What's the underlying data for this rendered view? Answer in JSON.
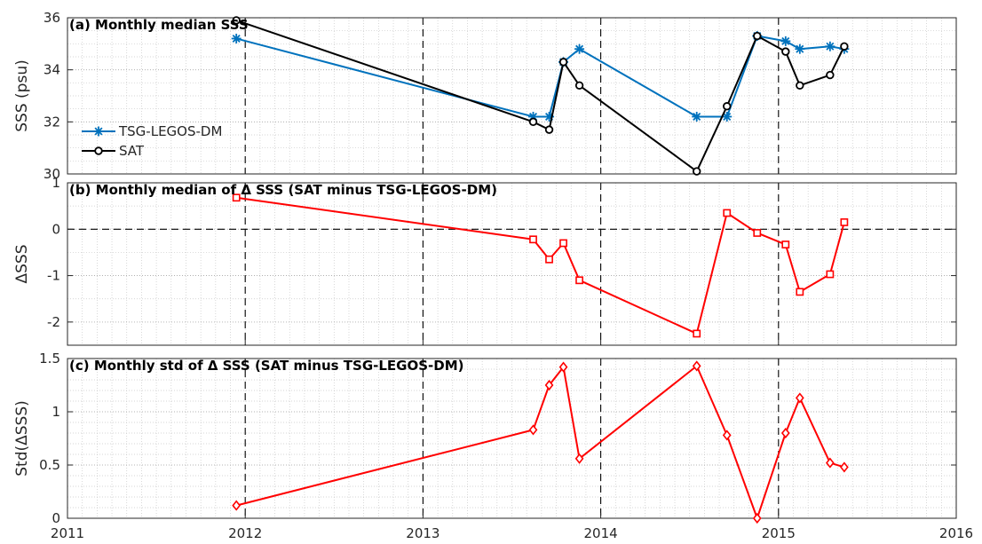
{
  "chart_data": [
    {
      "type": "line",
      "title": "(a) Monthly median SSS",
      "xlabel": "",
      "ylabel": "SSS (psu)",
      "xlim": [
        2011,
        2016
      ],
      "ylim": [
        30,
        36
      ],
      "x_ticks": [
        "2011",
        "2012",
        "2013",
        "2014",
        "2015",
        "2016"
      ],
      "y_ticks": [
        "30",
        "32",
        "34",
        "36"
      ],
      "grid": "minor dotted, major dashed vertical at years",
      "legend_position": "left",
      "series": [
        {
          "name": "TSG-LEGOS-DM",
          "color": "#0072BD",
          "marker": "asterisk",
          "x": [
            2011.95,
            2013.62,
            2013.71,
            2013.79,
            2013.88,
            2014.54,
            2014.71,
            2014.88,
            2015.04,
            2015.12,
            2015.29,
            2015.37
          ],
          "y": [
            35.2,
            32.2,
            32.2,
            34.3,
            34.8,
            32.2,
            32.2,
            35.3,
            35.1,
            34.8,
            34.9,
            34.8
          ]
        },
        {
          "name": "SAT",
          "color": "#000000",
          "marker": "circle",
          "x": [
            2011.95,
            2013.62,
            2013.71,
            2013.79,
            2013.88,
            2014.54,
            2014.71,
            2014.88,
            2015.04,
            2015.12,
            2015.29,
            2015.37
          ],
          "y": [
            35.9,
            32.0,
            31.7,
            34.3,
            33.4,
            30.1,
            32.6,
            35.3,
            34.7,
            33.4,
            33.8,
            34.9
          ]
        }
      ]
    },
    {
      "type": "line",
      "title": "(b) Monthly median of Δ SSS (SAT minus TSG-LEGOS-DM)",
      "xlabel": "",
      "ylabel": "ΔSSS",
      "xlim": [
        2011,
        2016
      ],
      "ylim": [
        -2.5,
        1
      ],
      "x_ticks": [
        "2011",
        "2012",
        "2013",
        "2014",
        "2015",
        "2016"
      ],
      "y_ticks": [
        "-2",
        "-1",
        "0",
        "1"
      ],
      "zero_line": "dashed",
      "series": [
        {
          "color": "#FF0000",
          "marker": "square",
          "x": [
            2011.95,
            2013.62,
            2013.71,
            2013.79,
            2013.88,
            2014.54,
            2014.71,
            2014.88,
            2015.04,
            2015.12,
            2015.29,
            2015.37
          ],
          "y": [
            0.68,
            -0.22,
            -0.65,
            -0.3,
            -1.1,
            -2.25,
            0.35,
            -0.08,
            -0.33,
            -1.35,
            -0.97,
            0.15
          ]
        }
      ]
    },
    {
      "type": "line",
      "title": "(c) Monthly std of Δ SSS (SAT minus TSG-LEGOS-DM)",
      "xlabel": "",
      "ylabel": "Std(ΔSSS)",
      "xlim": [
        2011,
        2016
      ],
      "ylim": [
        0,
        1.5
      ],
      "x_ticks": [
        "2011",
        "2012",
        "2013",
        "2014",
        "2015",
        "2016"
      ],
      "y_ticks": [
        "0",
        "0.5",
        "1",
        "1.5"
      ],
      "series": [
        {
          "color": "#FF0000",
          "marker": "diamond",
          "x": [
            2011.95,
            2013.62,
            2013.71,
            2013.79,
            2013.88,
            2014.54,
            2014.71,
            2014.88,
            2015.04,
            2015.12,
            2015.29,
            2015.37
          ],
          "y": [
            0.12,
            0.83,
            1.25,
            1.42,
            0.56,
            1.43,
            0.78,
            0.0,
            0.8,
            1.13,
            0.52,
            0.48
          ]
        }
      ]
    }
  ]
}
